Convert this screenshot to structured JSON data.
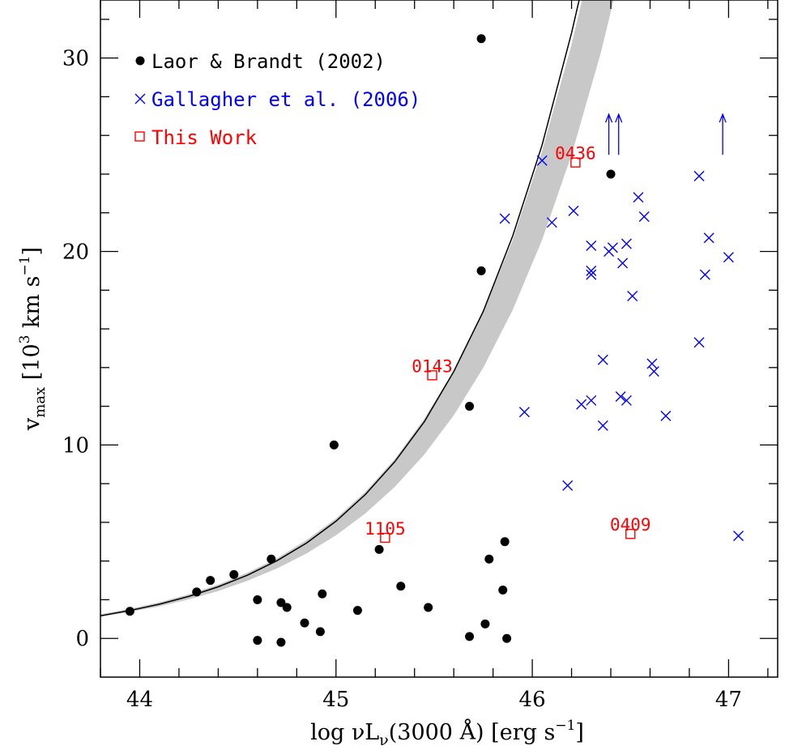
{
  "chart_data": {
    "type": "scatter",
    "xlim": [
      43.8,
      47.25
    ],
    "ylim": [
      -2,
      33
    ],
    "x_ticks": [
      "44",
      "45",
      "46",
      "47"
    ],
    "y_ticks": [
      "0",
      "10",
      "20",
      "30"
    ],
    "xlabel": {
      "prefix": "log νL",
      "sub": "ν",
      "mid": "(3000 Å) [erg s",
      "sup": "−1",
      "suffix": "]"
    },
    "ylabel": {
      "main": "v",
      "sub": "max",
      "mid": " [10",
      "sup1": "3",
      "mid2": " km s",
      "sup2": "−1",
      "suffix": "]"
    },
    "legend_placement": "top-left",
    "band": {
      "color": "#c8c8c8",
      "curve_color": "#000000",
      "center": [
        [
          43.8,
          1.17
        ],
        [
          43.95,
          1.44
        ],
        [
          44.1,
          1.77
        ],
        [
          44.25,
          2.17
        ],
        [
          44.4,
          2.67
        ],
        [
          44.55,
          3.27
        ],
        [
          44.7,
          4.02
        ],
        [
          44.85,
          4.93
        ],
        [
          45.0,
          6.06
        ],
        [
          45.15,
          7.44
        ],
        [
          45.3,
          9.14
        ],
        [
          45.45,
          11.2
        ],
        [
          45.6,
          13.8
        ],
        [
          45.75,
          16.9
        ],
        [
          45.9,
          20.8
        ],
        [
          46.05,
          25.5
        ],
        [
          46.2,
          31.3
        ],
        [
          46.25,
          33.5
        ]
      ],
      "upper": [
        [
          43.8,
          1.25
        ],
        [
          43.95,
          1.53
        ],
        [
          44.1,
          1.87
        ],
        [
          44.25,
          2.28
        ],
        [
          44.4,
          2.78
        ],
        [
          44.55,
          3.4
        ],
        [
          44.7,
          4.15
        ],
        [
          44.85,
          5.08
        ],
        [
          45.0,
          6.2
        ],
        [
          45.15,
          7.58
        ],
        [
          45.3,
          9.28
        ],
        [
          45.45,
          11.35
        ],
        [
          45.6,
          13.85
        ],
        [
          45.75,
          16.9
        ],
        [
          45.9,
          20.6
        ],
        [
          46.05,
          25.2
        ],
        [
          46.2,
          30.7
        ],
        [
          46.3,
          35
        ]
      ],
      "lower": [
        [
          43.8,
          1.12
        ],
        [
          43.95,
          1.37
        ],
        [
          44.1,
          1.66
        ],
        [
          44.25,
          2.02
        ],
        [
          44.4,
          2.45
        ],
        [
          44.55,
          2.98
        ],
        [
          44.7,
          3.62
        ],
        [
          44.85,
          4.39
        ],
        [
          45.0,
          5.33
        ],
        [
          45.15,
          6.46
        ],
        [
          45.3,
          7.84
        ],
        [
          45.45,
          9.51
        ],
        [
          45.6,
          11.53
        ],
        [
          45.75,
          13.99
        ],
        [
          45.9,
          16.98
        ],
        [
          46.05,
          20.6
        ],
        [
          46.2,
          25.0
        ],
        [
          46.35,
          30.3
        ],
        [
          46.45,
          34.5
        ]
      ]
    },
    "series": [
      {
        "name": "Laor & Brandt (2002)",
        "marker": "dot",
        "color": "#000000",
        "points": [
          [
            43.95,
            1.4
          ],
          [
            44.29,
            2.4
          ],
          [
            44.36,
            3.0
          ],
          [
            44.48,
            3.3
          ],
          [
            44.67,
            4.1
          ],
          [
            44.6,
            2.0
          ],
          [
            44.6,
            -0.1
          ],
          [
            44.72,
            1.85
          ],
          [
            44.72,
            -0.2
          ],
          [
            44.75,
            1.6
          ],
          [
            44.84,
            0.8
          ],
          [
            44.92,
            0.35
          ],
          [
            44.93,
            2.3
          ],
          [
            44.99,
            10.0
          ],
          [
            45.11,
            1.45
          ],
          [
            45.22,
            4.6
          ],
          [
            45.33,
            2.7
          ],
          [
            45.47,
            1.6
          ],
          [
            45.68,
            12.0
          ],
          [
            45.68,
            0.1
          ],
          [
            45.74,
            31.0
          ],
          [
            45.74,
            19.0
          ],
          [
            45.76,
            0.75
          ],
          [
            45.78,
            4.1
          ],
          [
            45.85,
            2.5
          ],
          [
            45.86,
            5.0
          ],
          [
            45.87,
            0.0
          ],
          [
            46.4,
            24.0
          ]
        ]
      },
      {
        "name": "Gallagher et al. (2006)",
        "marker": "cross",
        "color": "#0000ff",
        "points": [
          [
            45.86,
            21.7
          ],
          [
            45.96,
            11.7
          ],
          [
            46.05,
            24.7
          ],
          [
            46.1,
            21.5
          ],
          [
            46.18,
            7.9
          ],
          [
            46.21,
            22.1
          ],
          [
            46.25,
            12.1
          ],
          [
            46.3,
            20.3
          ],
          [
            46.3,
            19.0
          ],
          [
            46.3,
            18.8
          ],
          [
            46.3,
            12.3
          ],
          [
            46.36,
            14.4
          ],
          [
            46.36,
            11.0
          ],
          [
            46.39,
            20.0
          ],
          [
            46.41,
            20.2
          ],
          [
            46.46,
            19.4
          ],
          [
            46.45,
            12.5
          ],
          [
            46.48,
            20.4
          ],
          [
            46.48,
            12.3
          ],
          [
            46.51,
            17.7
          ],
          [
            46.54,
            22.8
          ],
          [
            46.57,
            21.8
          ],
          [
            46.61,
            14.2
          ],
          [
            46.62,
            13.8
          ],
          [
            46.68,
            11.5
          ],
          [
            46.85,
            23.9
          ],
          [
            46.85,
            15.3
          ],
          [
            46.88,
            18.8
          ],
          [
            46.9,
            20.7
          ],
          [
            47.0,
            19.7
          ],
          [
            47.05,
            5.3
          ]
        ]
      },
      {
        "name": "This Work",
        "marker": "square",
        "color": "#ff0000",
        "points": [
          [
            45.25,
            5.2
          ],
          [
            45.49,
            13.6
          ],
          [
            46.22,
            24.6
          ],
          [
            46.5,
            5.4
          ]
        ]
      }
    ],
    "lower_limits": {
      "color": "#0000ff",
      "points": [
        [
          46.39,
          25.0
        ],
        [
          46.44,
          25.0
        ],
        [
          46.97,
          25.0
        ]
      ]
    },
    "annotations": [
      {
        "text": "1105",
        "x": 45.25,
        "y": 5.2
      },
      {
        "text": "0143",
        "x": 45.49,
        "y": 13.6
      },
      {
        "text": "0436",
        "x": 46.22,
        "y": 24.6
      },
      {
        "text": "0409",
        "x": 46.5,
        "y": 5.4
      }
    ]
  }
}
